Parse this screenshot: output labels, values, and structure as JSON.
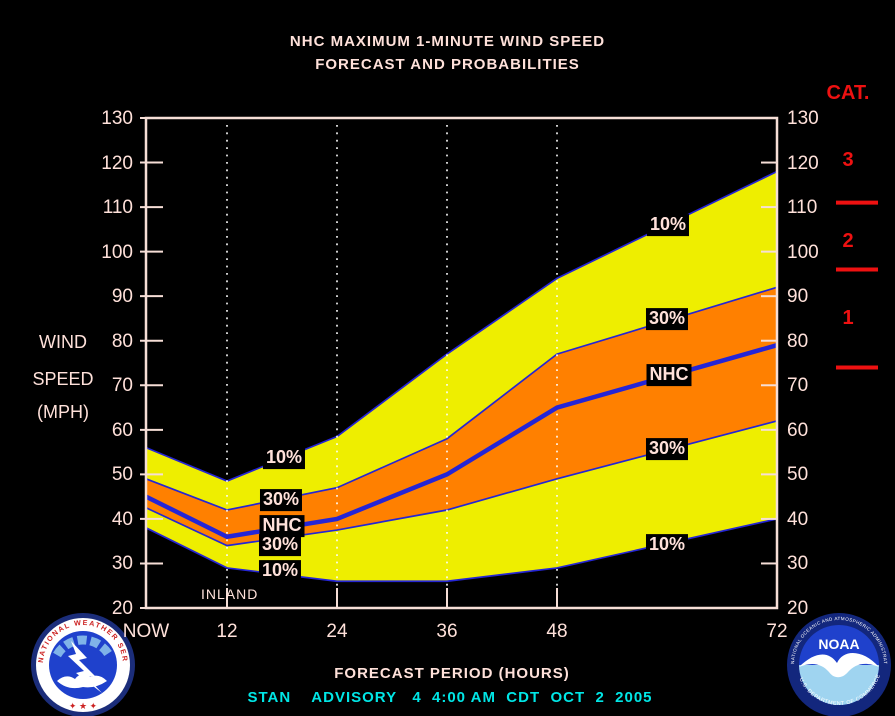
{
  "title": {
    "line1": "NHC MAXIMUM 1-MINUTE WIND SPEED",
    "line2": "FORECAST AND PROBABILITIES"
  },
  "y_axis": {
    "label_lines": [
      "WIND",
      "SPEED",
      "(MPH)"
    ],
    "ticks": [
      130,
      120,
      110,
      100,
      90,
      80,
      70,
      60,
      50,
      40,
      30,
      20
    ]
  },
  "x_axis": {
    "label": "FORECAST PERIOD (HOURS)",
    "categories": [
      "NOW",
      "12",
      "24",
      "36",
      "48",
      "72"
    ]
  },
  "category_scale": {
    "header": "CAT.",
    "items": [
      {
        "label": "3",
        "mph": 120.5
      },
      {
        "label": "2",
        "mph": 102.5
      },
      {
        "label": "1",
        "mph": 85
      }
    ],
    "boundaries_mph": [
      111,
      96,
      74
    ]
  },
  "annotations": {
    "left": [
      "10%",
      "30%",
      "NHC",
      "30%",
      "10%"
    ],
    "right": [
      "10%",
      "30%",
      "NHC",
      "30%",
      "10%"
    ],
    "inland": "INLAND"
  },
  "advisory": "STAN    ADVISORY   4  4:00 AM  CDT  OCT  2  2005",
  "logos": {
    "nws": {
      "ring_text": "NATIONAL WEATHER SERVICE",
      "stars": "✦ ★ ✦"
    },
    "noaa": {
      "name": "NOAA",
      "ring_top": "NATIONAL OCEANIC AND ATMOSPHERIC ADMINISTRATION",
      "ring_bottom": "U.S. DEPARTMENT OF COMMERCE"
    }
  },
  "colors": {
    "text": "#ffe1da",
    "frame": "#f6ded6",
    "red": "#ee1111",
    "cyan": "#00e6e6",
    "yellow": "#eeee00",
    "orange": "#ff8000",
    "blue": "#2525d5",
    "grid_dots": "#ffffff",
    "background": "#000000"
  },
  "chart_data": {
    "type": "area",
    "title": "NHC MAXIMUM 1-MINUTE WIND SPEED FORECAST AND PROBABILITIES",
    "xlabel": "FORECAST PERIOD (HOURS)",
    "ylabel": "WIND SPEED (MPH)",
    "x": [
      0,
      12,
      24,
      36,
      48,
      72
    ],
    "x_tick_labels": [
      "NOW",
      "12",
      "24",
      "36",
      "48",
      "72"
    ],
    "ylim": [
      20,
      130
    ],
    "grid": "dotted vertical gridlines at 12, 24, 36, 48 hours",
    "legend_position": "labels inside plot",
    "series": [
      {
        "name": "upper_10pct",
        "label": "10%",
        "values": [
          56,
          48.5,
          58.5,
          77,
          94,
          118
        ]
      },
      {
        "name": "upper_30pct",
        "label": "30%",
        "values": [
          49,
          42,
          47,
          58,
          77,
          92
        ]
      },
      {
        "name": "nhc_forecast",
        "label": "NHC",
        "values": [
          45,
          36,
          40,
          50,
          65,
          79
        ]
      },
      {
        "name": "lower_30pct",
        "label": "30%",
        "values": [
          42.5,
          34,
          37.5,
          42,
          49,
          62
        ]
      },
      {
        "name": "lower_10pct",
        "label": "10%",
        "values": [
          38,
          29,
          26,
          26,
          29,
          40
        ]
      }
    ]
  }
}
